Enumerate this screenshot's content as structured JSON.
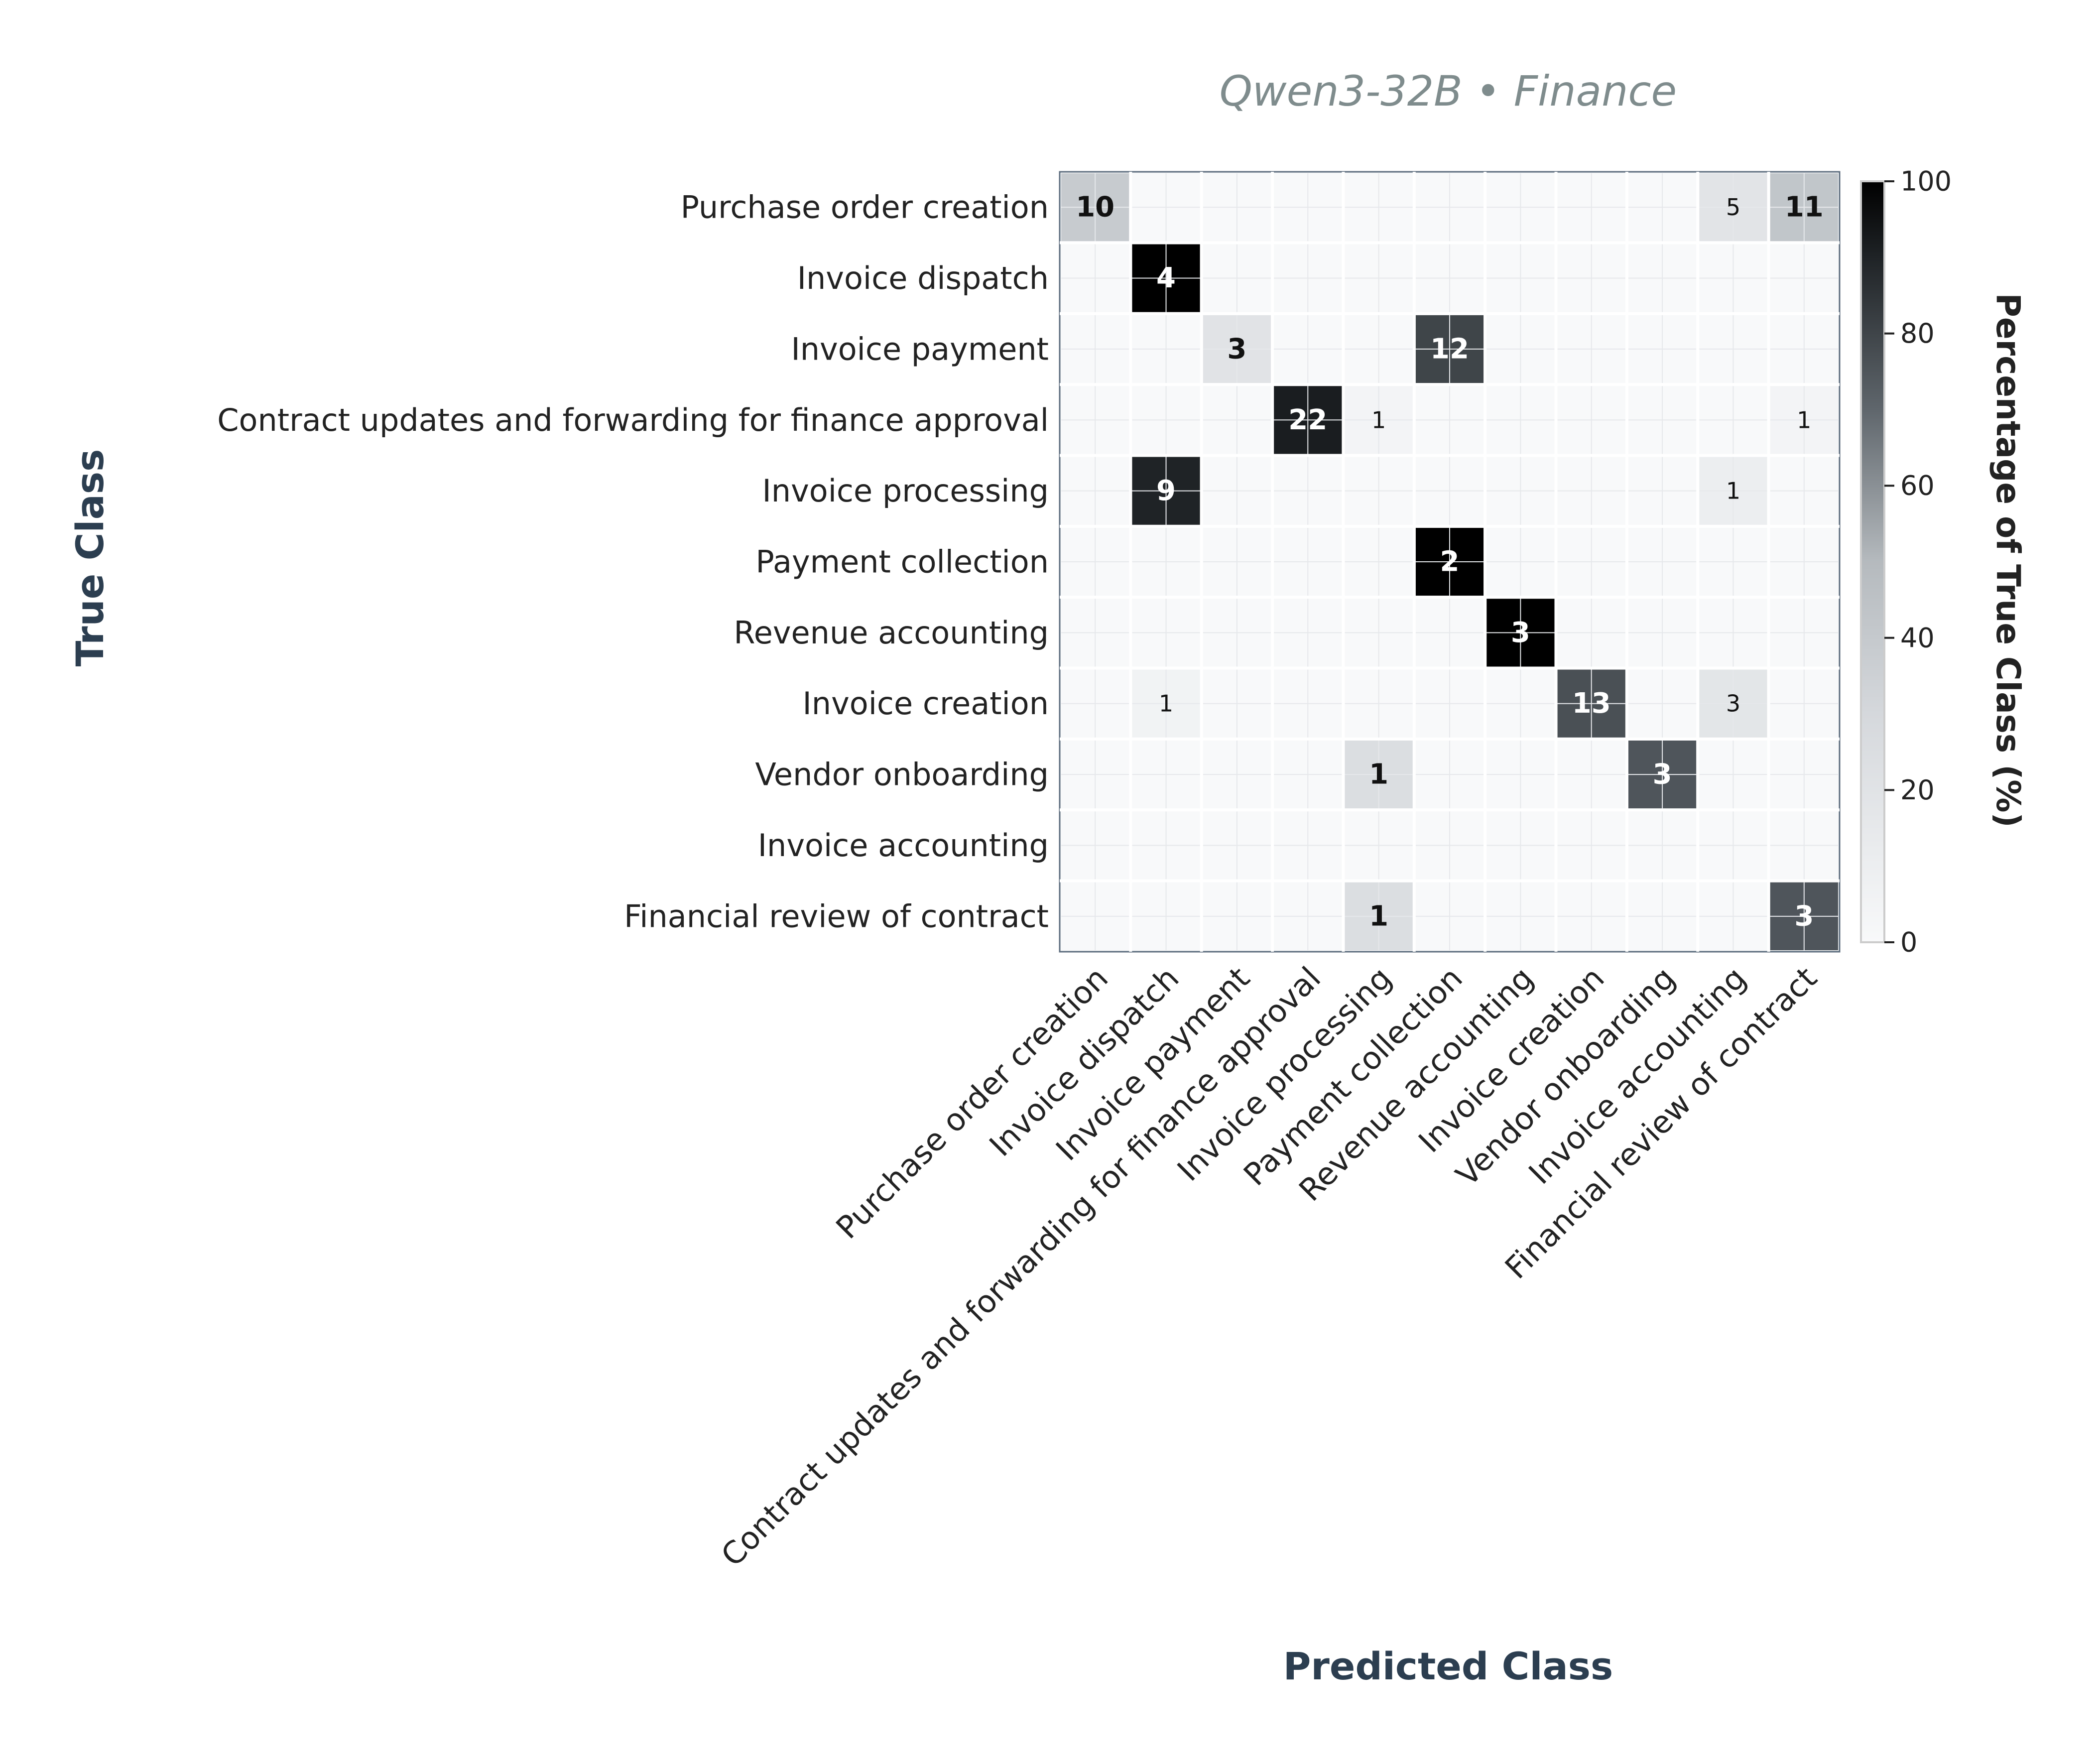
{
  "chart_data": {
    "type": "heatmap",
    "title": "Qwen3-32B • Finance",
    "xlabel": "Predicted Class",
    "ylabel": "True Class",
    "colorbar_label": "Percentage of True Class (%)",
    "colorbar_range": [
      0,
      100
    ],
    "colorbar_ticks": [
      "0",
      "20",
      "40",
      "60",
      "80",
      "100"
    ],
    "color_scale": [
      "#f8f9fa",
      "#d5d8dc",
      "#000000"
    ],
    "grid": true,
    "categories": [
      "Purchase order creation",
      "Invoice dispatch",
      "Invoice payment",
      "Contract updates and forwarding for finance approval",
      "Invoice processing",
      "Payment collection",
      "Revenue accounting",
      "Invoice creation",
      "Vendor onboarding",
      "Invoice accounting",
      "Financial review of contract"
    ],
    "counts": [
      [
        10,
        0,
        0,
        0,
        0,
        0,
        0,
        0,
        0,
        5,
        11
      ],
      [
        0,
        4,
        0,
        0,
        0,
        0,
        0,
        0,
        0,
        0,
        0
      ],
      [
        0,
        0,
        3,
        0,
        0,
        12,
        0,
        0,
        0,
        0,
        0
      ],
      [
        0,
        0,
        0,
        22,
        1,
        0,
        0,
        0,
        0,
        0,
        1
      ],
      [
        0,
        9,
        0,
        0,
        0,
        0,
        0,
        0,
        0,
        1,
        0
      ],
      [
        0,
        0,
        0,
        0,
        0,
        2,
        0,
        0,
        0,
        0,
        0
      ],
      [
        0,
        0,
        0,
        0,
        0,
        0,
        3,
        0,
        0,
        0,
        0
      ],
      [
        0,
        1,
        0,
        0,
        0,
        0,
        0,
        13,
        0,
        3,
        0
      ],
      [
        0,
        0,
        0,
        0,
        1,
        0,
        0,
        0,
        3,
        0,
        0
      ],
      [
        0,
        0,
        0,
        0,
        0,
        0,
        0,
        0,
        0,
        0,
        0
      ],
      [
        0,
        0,
        0,
        0,
        1,
        0,
        0,
        0,
        0,
        0,
        3
      ]
    ]
  }
}
